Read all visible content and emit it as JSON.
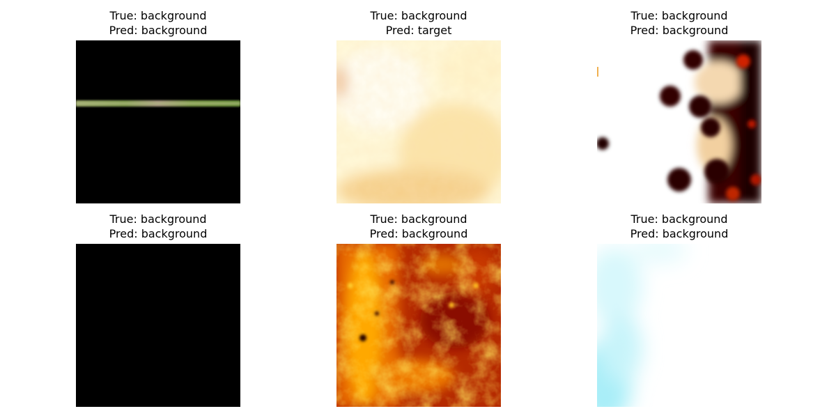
{
  "panels": [
    {
      "true_text": "True: background",
      "pred_text": "Pred: background",
      "image_name": "dark-image-with-green-horizontal-line"
    },
    {
      "true_text": "True: background",
      "pred_text": "Pred: target",
      "image_name": "pale-yellow-texture-image"
    },
    {
      "true_text": "True: background",
      "pred_text": "Pred: background",
      "image_name": "white-with-dark-blobs-image"
    },
    {
      "true_text": "True: background",
      "pred_text": "Pred: background",
      "image_name": "all-black-image"
    },
    {
      "true_text": "True: background",
      "pred_text": "Pred: background",
      "image_name": "orange-red-texture-image"
    },
    {
      "true_text": "True: background",
      "pred_text": "Pred: background",
      "image_name": "white-with-cyan-left-edge-image"
    }
  ],
  "colors": {
    "black": "#000000",
    "line_green": "#8aa05a",
    "pale_yellow": "#fff3c8",
    "deep_red": "#3a0000",
    "orange": "#f08a10",
    "cyan": "#b8f2f8"
  }
}
